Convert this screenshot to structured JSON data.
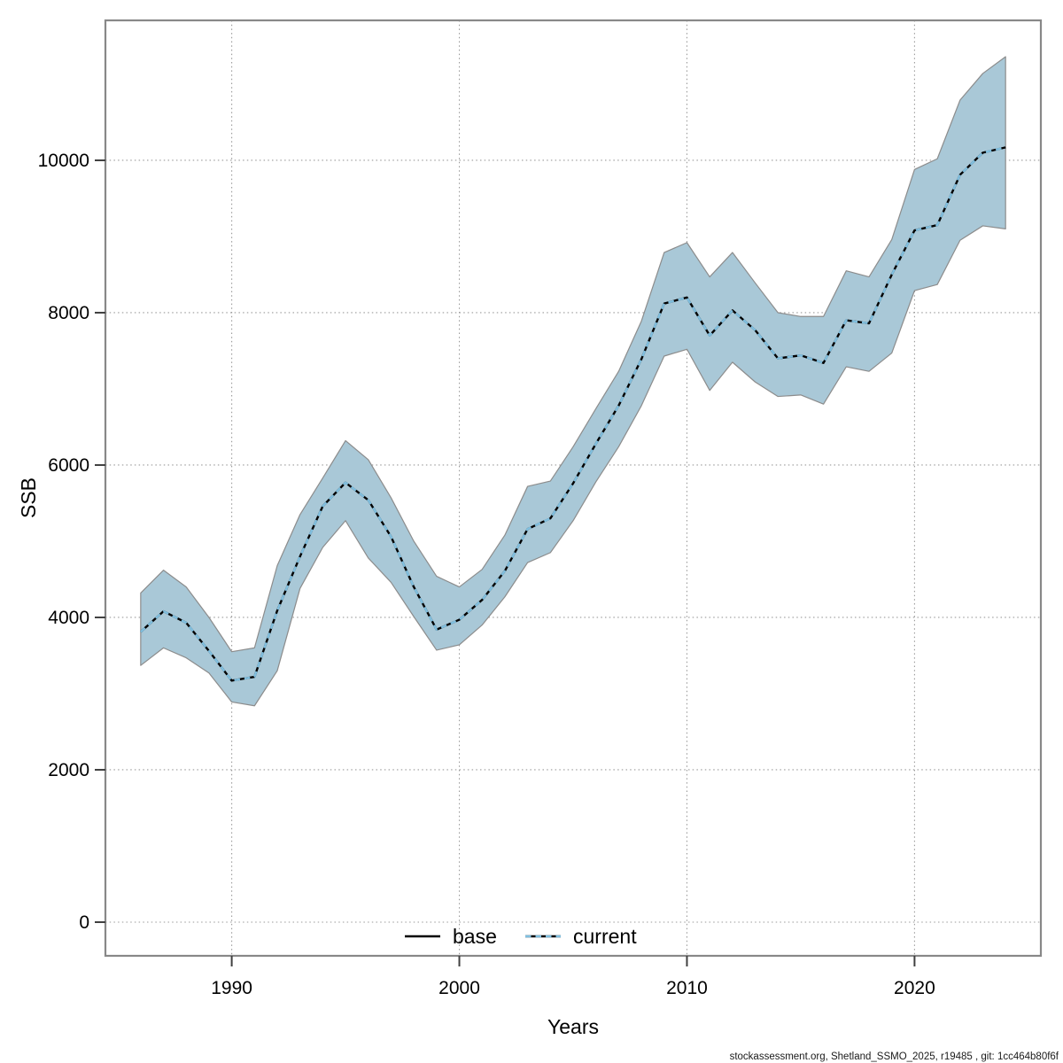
{
  "figure": {
    "background": "#ffffff"
  },
  "footer": {
    "text": "stockassessment.org, Shetland_SSMO_2025, r19485 , git: 1cc464b80f6f"
  },
  "chart_data": {
    "type": "line",
    "title": "",
    "xlabel": "Years",
    "ylabel": "SSB",
    "grid": "dotted",
    "xlim": [
      1984.45,
      2025.55
    ],
    "ylim": [
      -442,
      11837
    ],
    "x_ticks": [
      1990,
      2000,
      2010,
      2020
    ],
    "y_ticks": [
      0,
      2000,
      4000,
      6000,
      8000,
      10000
    ],
    "years": [
      1986,
      1987,
      1988,
      1989,
      1990,
      1991,
      1992,
      1993,
      1994,
      1995,
      1996,
      1997,
      1998,
      1999,
      2000,
      2001,
      2002,
      2003,
      2004,
      2005,
      2006,
      2007,
      2008,
      2009,
      2010,
      2011,
      2012,
      2013,
      2014,
      2015,
      2016,
      2017,
      2018,
      2019,
      2020,
      2021,
      2022,
      2023,
      2024
    ],
    "series": [
      {
        "name": "base",
        "line": "solid",
        "color": "#000000",
        "values": [
          3810,
          4080,
          3930,
          3560,
          3170,
          3220,
          4090,
          4800,
          5460,
          5770,
          5540,
          5060,
          4400,
          3840,
          3970,
          4230,
          4610,
          5160,
          5300,
          5760,
          6280,
          6780,
          7390,
          8120,
          8200,
          7700,
          8030,
          7770,
          7400,
          7440,
          7340,
          7900,
          7860,
          8500,
          9080,
          9150,
          9810,
          10100,
          10170
        ]
      },
      {
        "name": "current",
        "line": "dashed",
        "color": "#80bfdf",
        "values": [
          3810,
          4080,
          3930,
          3560,
          3170,
          3220,
          4090,
          4800,
          5460,
          5770,
          5540,
          5060,
          4400,
          3840,
          3970,
          4230,
          4610,
          5160,
          5300,
          5760,
          6280,
          6780,
          7390,
          8120,
          8200,
          7700,
          8030,
          7770,
          7400,
          7440,
          7340,
          7900,
          7860,
          8500,
          9080,
          9150,
          9810,
          10100,
          10170
        ]
      }
    ],
    "confidence_band": {
      "series": "current",
      "fill": "#a9c8d7",
      "edge": "#8c8c8c",
      "lower": [
        3370,
        3600,
        3470,
        3270,
        2890,
        2840,
        3300,
        4380,
        4920,
        5270,
        4780,
        4460,
        4010,
        3570,
        3640,
        3900,
        4270,
        4720,
        4850,
        5270,
        5780,
        6240,
        6780,
        7430,
        7520,
        6980,
        7350,
        7090,
        6900,
        6920,
        6800,
        7290,
        7230,
        7470,
        8290,
        8370,
        8950,
        9140,
        9100
      ],
      "upper": [
        4320,
        4620,
        4400,
        4000,
        3550,
        3600,
        4680,
        5350,
        5830,
        6320,
        6070,
        5570,
        5000,
        4540,
        4400,
        4630,
        5080,
        5720,
        5790,
        6240,
        6740,
        7230,
        7890,
        8790,
        8920,
        8470,
        8790,
        8390,
        8000,
        7950,
        7950,
        8550,
        8470,
        8960,
        9880,
        10020,
        10790,
        11140,
        11360
      ]
    },
    "legend": {
      "position": "bottom-center-inside",
      "entries": [
        "base",
        "current"
      ]
    },
    "style": {
      "band_fill": "#a9c8d7",
      "band_edge": "#8c8c8c",
      "base_color": "#000000",
      "current_color": "#80bfdf",
      "grid_color": "#9a9a9a",
      "box_color": "#888888",
      "tick_color": "#404040"
    }
  }
}
